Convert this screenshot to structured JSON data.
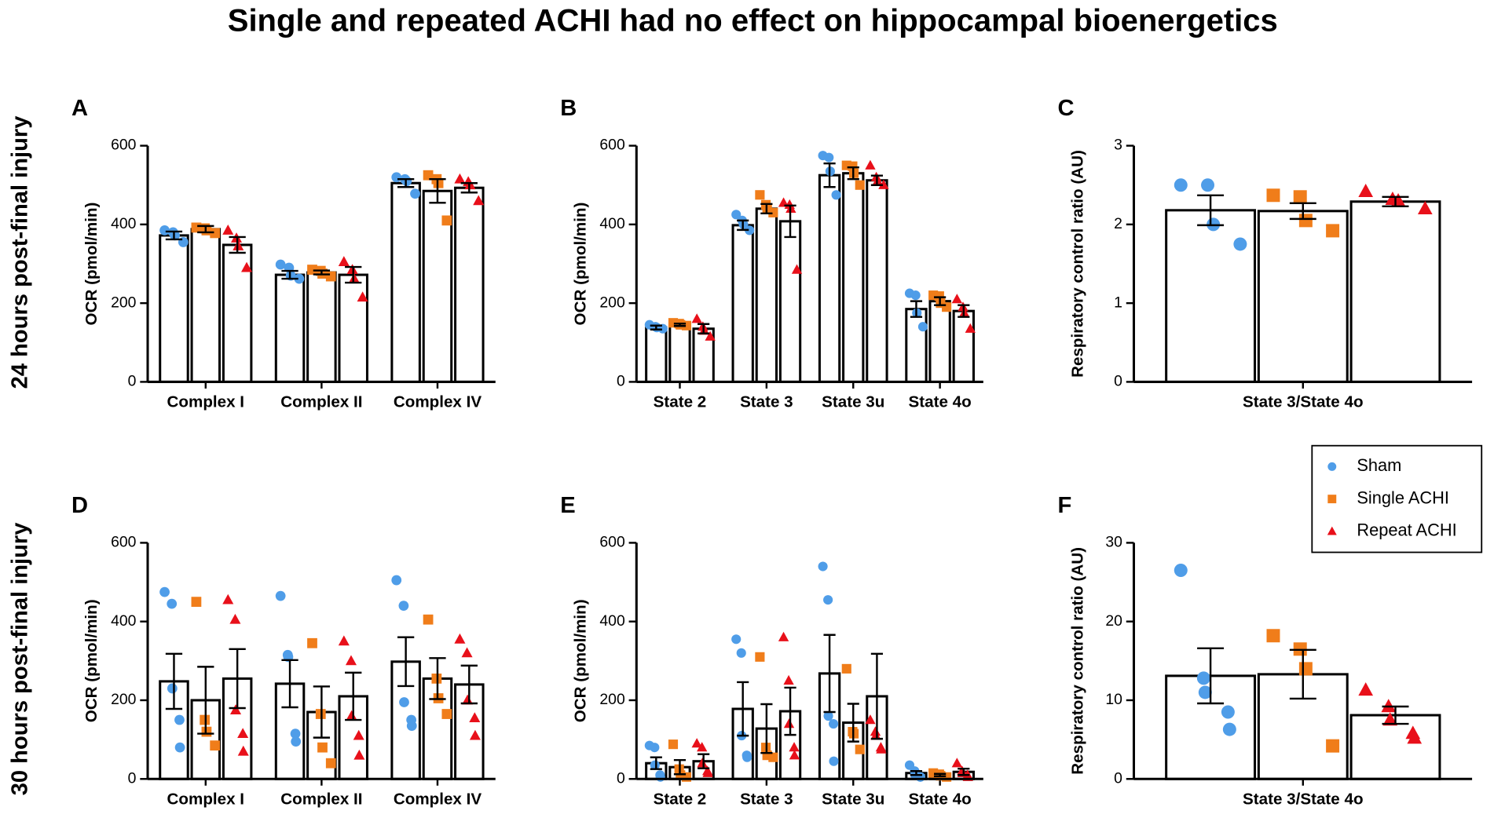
{
  "title": "Single and repeated ACHI had no effect on hippocampal bioenergetics",
  "row_labels": [
    "24 hours post-final injury",
    "30 hours post-final injury"
  ],
  "chart_data": [
    {
      "type": "bar",
      "label": "A",
      "ylabel": "OCR (pmol/min)",
      "categories": [
        "Complex I",
        "Complex II",
        "Complex IV"
      ],
      "ylim": [
        0,
        600
      ],
      "yticks": [
        0,
        200,
        400,
        600
      ],
      "series": [
        {
          "name": "Sham",
          "color": "#4f9de8",
          "marker": "circle",
          "values": [
            372,
            272,
            505
          ],
          "errors": [
            10,
            10,
            10
          ],
          "points": [
            [
              385,
              380,
              372,
              355
            ],
            [
              298,
              290,
              270,
              262
            ],
            [
              520,
              515,
              510,
              478
            ]
          ]
        },
        {
          "name": "Single ACHI",
          "color": "#f07d1a",
          "marker": "square",
          "values": [
            388,
            278,
            485
          ],
          "errors": [
            8,
            5,
            30
          ],
          "points": [
            [
              392,
              390,
              385,
              378
            ],
            [
              285,
              282,
              275,
              268
            ],
            [
              525,
              515,
              505,
              410
            ]
          ]
        },
        {
          "name": "Repeat ACHI",
          "color": "#e8101a",
          "marker": "triangle",
          "values": [
            348,
            272,
            493
          ],
          "errors": [
            20,
            20,
            12
          ],
          "points": [
            [
              385,
              365,
              345,
              290
            ],
            [
              305,
              285,
              262,
              215
            ],
            [
              515,
              508,
              500,
              460
            ]
          ]
        }
      ]
    },
    {
      "type": "bar",
      "label": "B",
      "ylabel": "OCR (pmol/min)",
      "categories": [
        "State 2",
        "State 3",
        "State 3u",
        "State 4o"
      ],
      "ylim": [
        0,
        600
      ],
      "yticks": [
        0,
        200,
        400,
        600
      ],
      "series": [
        {
          "name": "Sham",
          "color": "#4f9de8",
          "marker": "circle",
          "values": [
            138,
            398,
            525,
            185
          ],
          "errors": [
            5,
            12,
            30,
            20
          ],
          "points": [
            [
              145,
              140,
              138,
              135
            ],
            [
              425,
              410,
              400,
              385
            ],
            [
              575,
              570,
              535,
              475
            ],
            [
              225,
              220,
              175,
              140
            ]
          ]
        },
        {
          "name": "Single ACHI",
          "color": "#f07d1a",
          "marker": "square",
          "values": [
            145,
            440,
            530,
            205
          ],
          "errors": [
            3,
            12,
            15,
            10
          ],
          "points": [
            [
              150,
              148,
              145,
              143
            ],
            [
              475,
              450,
              440,
              430
            ],
            [
              550,
              548,
              530,
              500
            ],
            [
              220,
              218,
              200,
              190
            ]
          ]
        },
        {
          "name": "Repeat ACHI",
          "color": "#e8101a",
          "marker": "triangle",
          "values": [
            135,
            408,
            512,
            180
          ],
          "errors": [
            12,
            40,
            12,
            15
          ],
          "points": [
            [
              160,
              140,
              130,
              115
            ],
            [
              455,
              450,
              440,
              285
            ],
            [
              550,
              520,
              510,
              500
            ],
            [
              210,
              190,
              175,
              135
            ]
          ]
        }
      ]
    },
    {
      "type": "bar",
      "label": "C",
      "ylabel": "Respiratory control ratio (AU)",
      "categories": [
        "State 3/State 4o"
      ],
      "ylim": [
        0,
        3
      ],
      "yticks": [
        0,
        1,
        2,
        3
      ],
      "series": [
        {
          "name": "Sham",
          "color": "#4f9de8",
          "marker": "circle",
          "values": [
            2.18
          ],
          "errors": [
            0.19
          ],
          "points": [
            [
              2.5,
              2.5,
              2.0,
              1.75
            ]
          ]
        },
        {
          "name": "Single ACHI",
          "color": "#f07d1a",
          "marker": "square",
          "values": [
            2.17
          ],
          "errors": [
            0.1
          ],
          "points": [
            [
              2.37,
              2.35,
              2.05,
              1.92
            ]
          ]
        },
        {
          "name": "Repeat ACHI",
          "color": "#e8101a",
          "marker": "triangle",
          "values": [
            2.29
          ],
          "errors": [
            0.06
          ],
          "points": [
            [
              2.42,
              2.32,
              2.3,
              2.2
            ]
          ]
        }
      ]
    },
    {
      "type": "bar",
      "label": "D",
      "ylabel": "OCR (pmol/min)",
      "categories": [
        "Complex I",
        "Complex II",
        "Complex IV"
      ],
      "ylim": [
        0,
        600
      ],
      "yticks": [
        0,
        200,
        400,
        600
      ],
      "series": [
        {
          "name": "Sham",
          "color": "#4f9de8",
          "marker": "circle",
          "values": [
            248,
            242,
            298
          ],
          "errors": [
            70,
            60,
            62
          ],
          "points": [
            [
              475,
              445,
              230,
              150,
              80
            ],
            [
              465,
              315,
              310,
              115,
              95
            ],
            [
              505,
              440,
              195,
              150,
              135
            ]
          ]
        },
        {
          "name": "Single ACHI",
          "color": "#f07d1a",
          "marker": "square",
          "values": [
            200,
            170,
            255
          ],
          "errors": [
            85,
            65,
            52
          ],
          "points": [
            [
              450,
              150,
              120,
              85
            ],
            [
              345,
              165,
              80,
              40
            ],
            [
              405,
              255,
              205,
              165
            ]
          ]
        },
        {
          "name": "Repeat ACHI",
          "color": "#e8101a",
          "marker": "triangle",
          "values": [
            255,
            210,
            240
          ],
          "errors": [
            75,
            60,
            48
          ],
          "points": [
            [
              455,
              405,
              175,
              115,
              70
            ],
            [
              350,
              300,
              160,
              110,
              60
            ],
            [
              355,
              320,
              200,
              155,
              110
            ]
          ]
        }
      ]
    },
    {
      "type": "bar",
      "label": "E",
      "ylabel": "OCR (pmol/min)",
      "categories": [
        "State 2",
        "State 3",
        "State 3u",
        "State 4o"
      ],
      "ylim": [
        0,
        600
      ],
      "yticks": [
        0,
        200,
        400,
        600
      ],
      "series": [
        {
          "name": "Sham",
          "color": "#4f9de8",
          "marker": "circle",
          "values": [
            40,
            178,
            268,
            15
          ],
          "errors": [
            15,
            68,
            98,
            5
          ],
          "points": [
            [
              85,
              80,
              35,
              10,
              5
            ],
            [
              355,
              320,
              110,
              60,
              55
            ],
            [
              540,
              455,
              160,
              140,
              45
            ],
            [
              35,
              20,
              10,
              5,
              5
            ]
          ]
        },
        {
          "name": "Single ACHI",
          "color": "#f07d1a",
          "marker": "square",
          "values": [
            30,
            128,
            143,
            10
          ],
          "errors": [
            18,
            62,
            48,
            3
          ],
          "points": [
            [
              88,
              25,
              10,
              5
            ],
            [
              310,
              80,
              60,
              55
            ],
            [
              280,
              120,
              115,
              75
            ],
            [
              15,
              12,
              8,
              5
            ]
          ]
        },
        {
          "name": "Repeat ACHI",
          "color": "#e8101a",
          "marker": "triangle",
          "values": [
            45,
            172,
            210,
            18
          ],
          "errors": [
            18,
            60,
            108,
            8
          ],
          "points": [
            [
              90,
              80,
              40,
              20,
              15
            ],
            [
              360,
              250,
              140,
              80,
              60
            ],
            [
              150,
              120,
              110,
              80,
              75
            ],
            [
              40,
              20,
              15,
              10,
              5
            ]
          ]
        }
      ]
    },
    {
      "type": "bar",
      "label": "F",
      "ylabel": "Respiratory control ratio (AU)",
      "categories": [
        "State 3/State 4o"
      ],
      "ylim": [
        0,
        30
      ],
      "yticks": [
        0,
        10,
        20,
        30
      ],
      "legend": "upper right",
      "series": [
        {
          "name": "Sham",
          "color": "#4f9de8",
          "marker": "circle",
          "values": [
            13.1
          ],
          "errors": [
            3.5
          ],
          "points": [
            [
              26.5,
              12.8,
              11,
              8.5,
              6.3
            ]
          ]
        },
        {
          "name": "Single ACHI",
          "color": "#f07d1a",
          "marker": "square",
          "values": [
            13.3
          ],
          "errors": [
            3.1
          ],
          "points": [
            [
              18.2,
              16.5,
              14,
              4.2
            ]
          ]
        },
        {
          "name": "Repeat ACHI",
          "color": "#e8101a",
          "marker": "triangle",
          "values": [
            8.1
          ],
          "errors": [
            1.1
          ],
          "points": [
            [
              11.3,
              9.2,
              7.5,
              5.8,
              5.2
            ]
          ]
        }
      ]
    }
  ]
}
